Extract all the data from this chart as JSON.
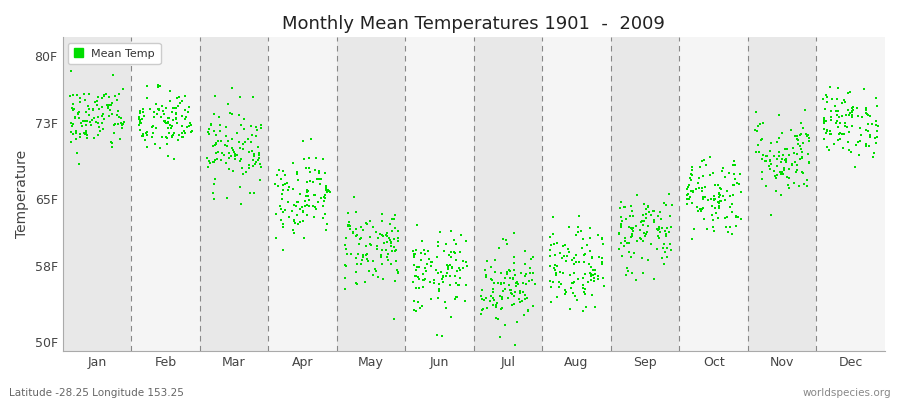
{
  "title": "Monthly Mean Temperatures 1901  -  2009",
  "ylabel": "Temperature",
  "ytick_labels": [
    "50F",
    "58F",
    "65F",
    "73F",
    "80F"
  ],
  "ytick_values": [
    50,
    58,
    65,
    73,
    80
  ],
  "ylim": [
    49,
    82
  ],
  "month_labels": [
    "Jan",
    "Feb",
    "Mar",
    "Apr",
    "May",
    "Jun",
    "Jul",
    "Aug",
    "Sep",
    "Oct",
    "Nov",
    "Dec"
  ],
  "dot_color": "#00dd00",
  "dot_size": 3,
  "background_color": "#ffffff",
  "plot_bg_col_odd": "#e8e8e8",
  "plot_bg_col_even": "#f5f5f5",
  "legend_label": "Mean Temp",
  "subtitle_left": "Latitude -28.25 Longitude 153.25",
  "subtitle_right": "worldspecies.org",
  "monthly_mean_F": [
    73.5,
    73.0,
    70.5,
    65.5,
    60.0,
    57.0,
    56.0,
    57.5,
    61.5,
    65.5,
    69.5,
    73.0
  ],
  "monthly_std_F": [
    1.8,
    1.8,
    2.2,
    2.2,
    2.2,
    2.2,
    2.2,
    2.2,
    2.2,
    2.2,
    2.2,
    1.8
  ],
  "n_years": 109,
  "seed": 42
}
